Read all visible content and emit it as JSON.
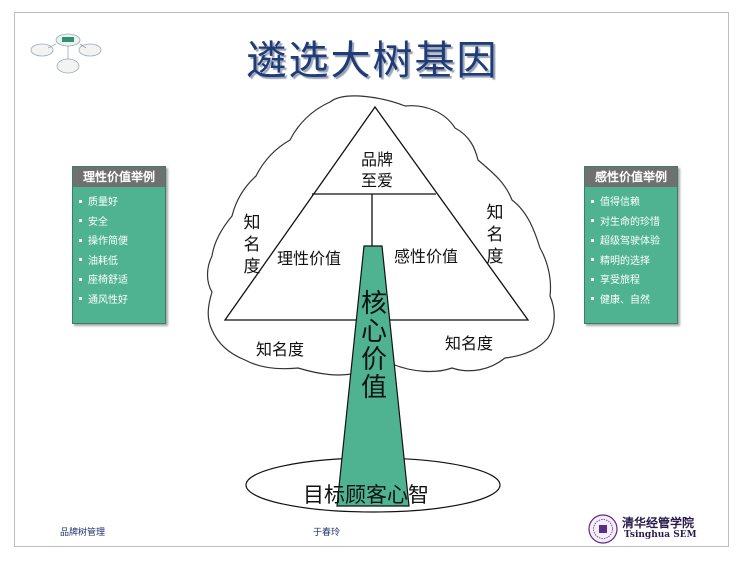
{
  "title": "遴选大树基因",
  "left_box": {
    "header": "理性价值举例",
    "items": [
      "质量好",
      "安全",
      "操作简便",
      "油耗低",
      "座椅舒适",
      "通风性好"
    ]
  },
  "right_box": {
    "header": "感性价值举例",
    "items": [
      "值得信赖",
      "对生命的珍惜",
      "超级驾驶体验",
      "精明的选择",
      "享受旅程",
      "健康、自然"
    ]
  },
  "diagram": {
    "apex_line1": "品牌",
    "apex_line2": "至爱",
    "rational_value": "理性价值",
    "emotional_value": "感性价值",
    "core_value": "核心价值",
    "awareness_left_vertical": "知名度",
    "awareness_right_vertical": "知名度",
    "awareness_bottom_left": "知名度",
    "awareness_bottom_right": "知名度",
    "root": "目标顾客心智"
  },
  "colors": {
    "green": "#4fb391",
    "title": "#1f3b78",
    "header_gray": "#707070"
  },
  "footer": {
    "left": "品牌树管理",
    "center": "于春玲",
    "logo_cn": "清华经管学院",
    "logo_en": "Tsinghua SEM"
  }
}
